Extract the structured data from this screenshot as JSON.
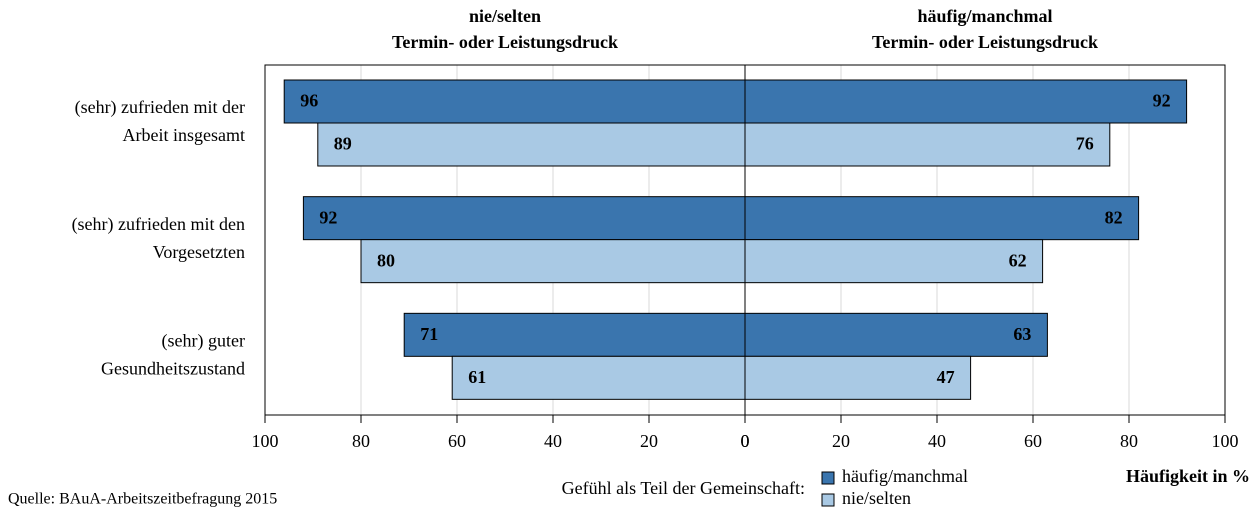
{
  "chart_data": {
    "type": "butterfly",
    "categories": [
      [
        "(sehr) zufrieden mit der",
        "Arbeit insgesamt"
      ],
      [
        "(sehr) zufrieden mit den",
        "Vorgesetzten"
      ],
      [
        "(sehr) guter",
        "Gesundheitszustand"
      ]
    ],
    "panels": [
      {
        "title": [
          "nie/selten",
          "Termin- oder Leistungsdruck"
        ],
        "series": [
          {
            "name": "häufig/manchmal",
            "color": "#3a75ae",
            "values": [
              96,
              92,
              71
            ]
          },
          {
            "name": "nie/selten",
            "color": "#a9c9e4",
            "values": [
              89,
              80,
              61
            ]
          }
        ]
      },
      {
        "title": [
          "häufig/manchmal",
          "Termin- oder Leistungsdruck"
        ],
        "series": [
          {
            "name": "häufig/manchmal",
            "color": "#3a75ae",
            "values": [
              92,
              82,
              63
            ]
          },
          {
            "name": "nie/selten",
            "color": "#a9c9e4",
            "values": [
              76,
              62,
              47
            ]
          }
        ]
      }
    ],
    "xlim": [
      0,
      100
    ],
    "xticks": [
      0,
      20,
      40,
      60,
      80,
      100
    ],
    "xlabel": "Häufigkeit in %",
    "legend_title": "Gefühl als Teil der Gemeinschaft:",
    "source": "Quelle: BAuA-Arbeitszeitbefragung 2015",
    "grid": true
  }
}
